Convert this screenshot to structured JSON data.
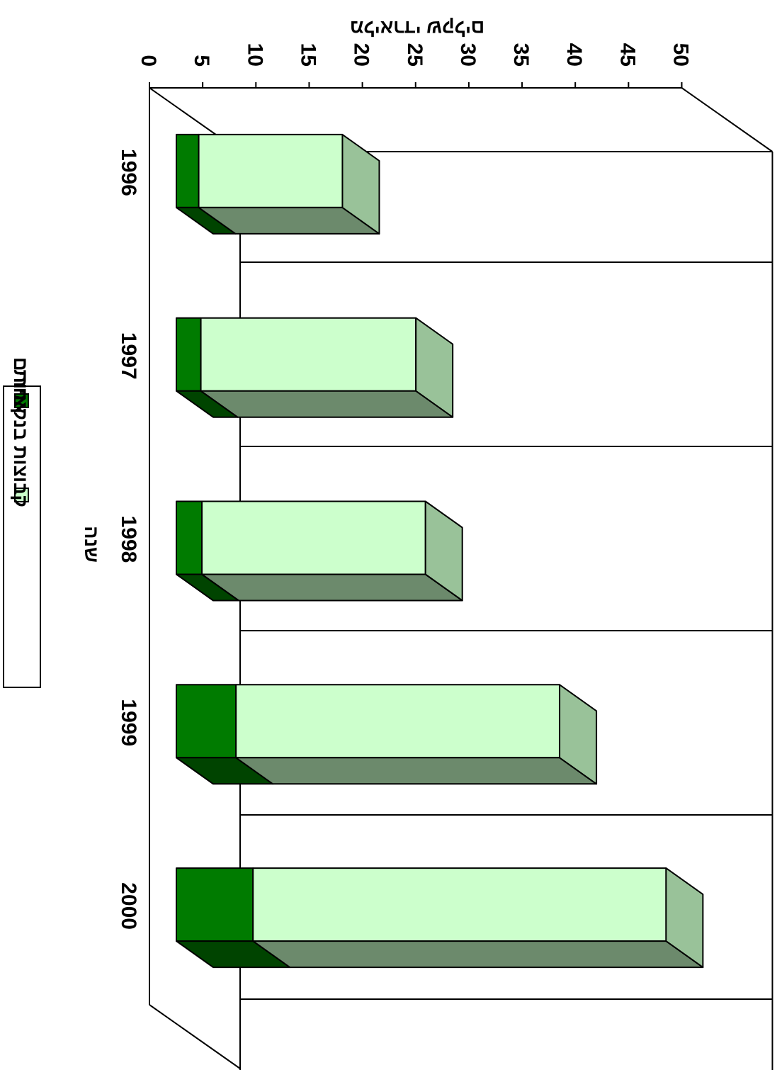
{
  "chart_data": {
    "type": "bar",
    "orientation": "horizontal",
    "stacked": true,
    "three_d": true,
    "ylabel": "מליארדי שקלים",
    "xlabel": "שנה",
    "categories": [
      "1996",
      "1997",
      "1998",
      "1999",
      "2000"
    ],
    "ylim": [
      0,
      50
    ],
    "ticks": [
      "0",
      "5",
      "10",
      "15",
      "20",
      "25",
      "30",
      "35",
      "40",
      "45",
      "50"
    ],
    "series": [
      {
        "name": "אחרים",
        "values": [
          2.1,
          2.3,
          2.4,
          5.6,
          7.2
        ],
        "color": "#007b00"
      },
      {
        "name": "קבוצות בנקאיות",
        "values": [
          13.5,
          20.2,
          21.0,
          30.4,
          38.8
        ],
        "color": "#ccffcc"
      }
    ],
    "grid": true,
    "legend": "bottom"
  }
}
